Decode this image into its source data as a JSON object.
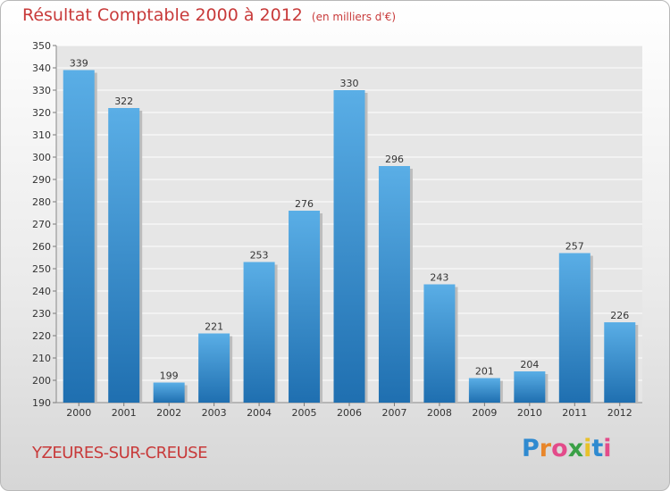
{
  "chart_data": {
    "type": "bar",
    "title": "Résultat Comptable 2000 à 2012",
    "subtitle": "(en milliers d'€)",
    "categories": [
      "2000",
      "2001",
      "2002",
      "2003",
      "2004",
      "2005",
      "2006",
      "2007",
      "2008",
      "2009",
      "2010",
      "2011",
      "2012"
    ],
    "values": [
      339,
      322,
      199,
      221,
      253,
      276,
      330,
      296,
      243,
      201,
      204,
      257,
      226
    ],
    "ylim": [
      190,
      350
    ],
    "yticks": [
      190,
      200,
      210,
      220,
      230,
      240,
      250,
      260,
      270,
      280,
      290,
      300,
      310,
      320,
      330,
      340,
      350
    ],
    "xlabel": "",
    "ylabel": "",
    "grid": true,
    "bar_color_top": "#5aaee6",
    "bar_color_bottom": "#1f6fb0"
  },
  "place": "YZEURES-SUR-CREUSE",
  "brand": {
    "letters": [
      "P",
      "r",
      "o",
      "x",
      "i",
      "t",
      "i"
    ],
    "colors": [
      "#2f8ad0",
      "#e8862a",
      "#e34b8a",
      "#3aa046",
      "#e8c12a",
      "#2f8ad0",
      "#e34b8a"
    ]
  }
}
